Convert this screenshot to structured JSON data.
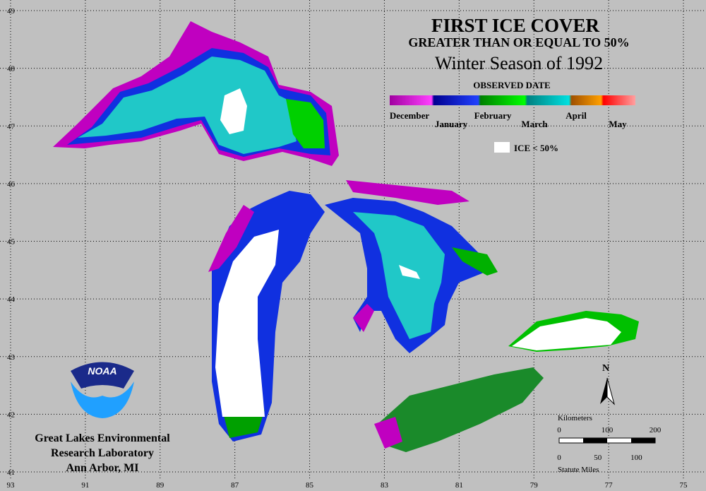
{
  "title": "FIRST ICE COVER",
  "subtitle": "GREATER THAN OR EQUAL TO 50%",
  "season": "Winter Season of 1992",
  "legend": {
    "title": "OBSERVED DATE",
    "months": [
      "December",
      "January",
      "February",
      "March",
      "April",
      "May"
    ],
    "ice_label": "ICE < 50%"
  },
  "longitudes": [
    93,
    91,
    89,
    87,
    85,
    83,
    81,
    79,
    77,
    75
  ],
  "latitudes": [
    49,
    48,
    47,
    46,
    45,
    44,
    43,
    42,
    41
  ],
  "north": "N",
  "scale": {
    "km_title": "Kilometers",
    "km_ticks": [
      0,
      100,
      200
    ],
    "mi_ticks": [
      0,
      50,
      100
    ],
    "mi_title": "Statute Miles"
  },
  "agency": {
    "logo": "NOAA",
    "lines": [
      "Great Lakes Environmental",
      "Research Laboratory",
      "Ann Arbor, MI"
    ]
  }
}
